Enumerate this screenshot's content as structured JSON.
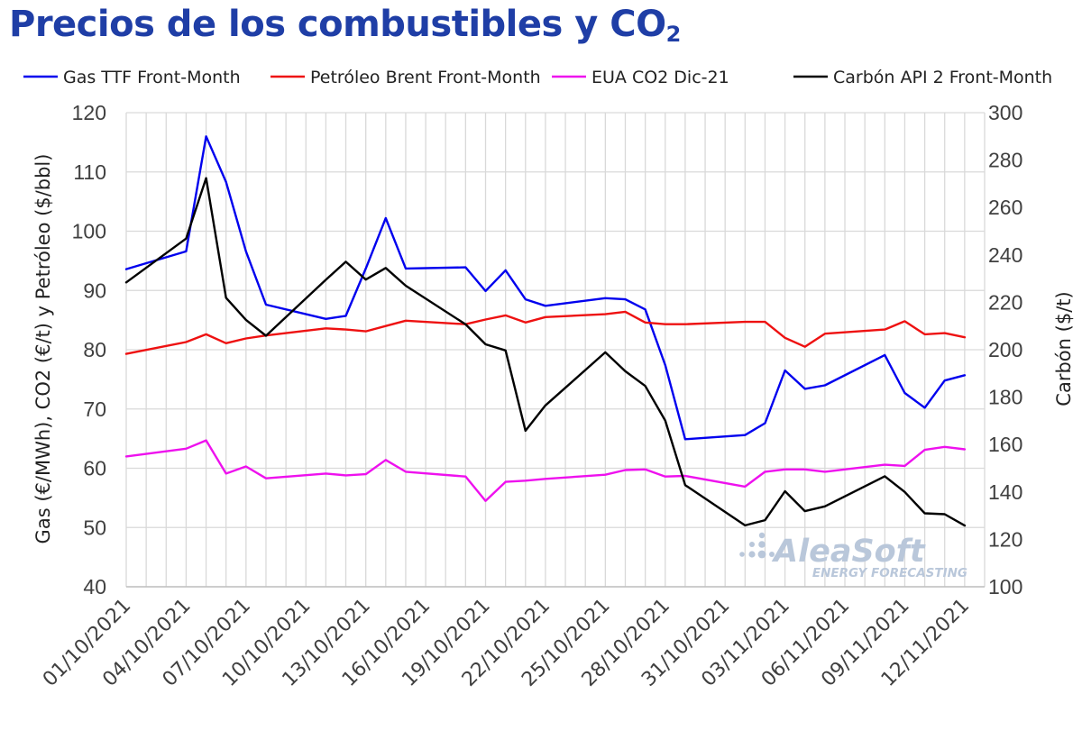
{
  "title_main": "Precios de los combustibles y CO",
  "title_sub": "2",
  "logo": {
    "name": "AleaSoft",
    "tagline": "ENERGY FORECASTING"
  },
  "chart_data": {
    "type": "line",
    "y_left_label": "Gas (€/MWh), CO2 (€/t)  y Petróleo ($/bbl)",
    "y_right_label": "Carbón ($/t)",
    "y_left_lim": [
      40,
      120
    ],
    "y_left_ticks": [
      "40",
      "50",
      "60",
      "70",
      "80",
      "90",
      "100",
      "110",
      "120"
    ],
    "y_right_lim": [
      100,
      300
    ],
    "y_right_ticks": [
      "100",
      "120",
      "140",
      "160",
      "180",
      "200",
      "220",
      "240",
      "260",
      "280",
      "300"
    ],
    "x_start": "2021-10-01",
    "x_end": "2021-11-13",
    "x_ticks": [
      "01/10/2021",
      "04/10/2021",
      "07/10/2021",
      "10/10/2021",
      "13/10/2021",
      "16/10/2021",
      "19/10/2021",
      "22/10/2021",
      "25/10/2021",
      "28/10/2021",
      "31/10/2021",
      "03/11/2021",
      "06/11/2021",
      "09/11/2021",
      "12/11/2021"
    ],
    "grid": true,
    "legend_position": "top",
    "series": [
      {
        "name": "Gas TTF Front-Month",
        "axis": "left",
        "color": "#0000ee",
        "points": [
          [
            "2021-10-01",
            93.6
          ],
          [
            "2021-10-04",
            96.6
          ],
          [
            "2021-10-05",
            116.0
          ],
          [
            "2021-10-06",
            108.3
          ],
          [
            "2021-10-07",
            96.6
          ],
          [
            "2021-10-08",
            87.6
          ],
          [
            "2021-10-11",
            85.2
          ],
          [
            "2021-10-12",
            85.7
          ],
          [
            "2021-10-13",
            93.7
          ],
          [
            "2021-10-14",
            102.2
          ],
          [
            "2021-10-15",
            93.7
          ],
          [
            "2021-10-18",
            93.9
          ],
          [
            "2021-10-19",
            89.9
          ],
          [
            "2021-10-20",
            93.4
          ],
          [
            "2021-10-21",
            88.5
          ],
          [
            "2021-10-22",
            87.4
          ],
          [
            "2021-10-25",
            88.7
          ],
          [
            "2021-10-26",
            88.5
          ],
          [
            "2021-10-27",
            86.8
          ],
          [
            "2021-10-28",
            77.4
          ],
          [
            "2021-10-29",
            64.9
          ],
          [
            "2021-11-01",
            65.6
          ],
          [
            "2021-11-02",
            67.6
          ],
          [
            "2021-11-03",
            76.5
          ],
          [
            "2021-11-04",
            73.4
          ],
          [
            "2021-11-05",
            74.0
          ],
          [
            "2021-11-08",
            79.1
          ],
          [
            "2021-11-09",
            72.7
          ],
          [
            "2021-11-10",
            70.2
          ],
          [
            "2021-11-11",
            74.8
          ],
          [
            "2021-11-12",
            75.7
          ]
        ]
      },
      {
        "name": "Petróleo Brent Front-Month",
        "axis": "left",
        "color": "#ee1111",
        "points": [
          [
            "2021-10-01",
            79.3
          ],
          [
            "2021-10-04",
            81.3
          ],
          [
            "2021-10-05",
            82.6
          ],
          [
            "2021-10-06",
            81.1
          ],
          [
            "2021-10-07",
            81.9
          ],
          [
            "2021-10-08",
            82.4
          ],
          [
            "2021-10-11",
            83.6
          ],
          [
            "2021-10-12",
            83.4
          ],
          [
            "2021-10-13",
            83.1
          ],
          [
            "2021-10-14",
            84.0
          ],
          [
            "2021-10-15",
            84.9
          ],
          [
            "2021-10-18",
            84.3
          ],
          [
            "2021-10-19",
            85.1
          ],
          [
            "2021-10-20",
            85.8
          ],
          [
            "2021-10-21",
            84.6
          ],
          [
            "2021-10-22",
            85.5
          ],
          [
            "2021-10-25",
            86.0
          ],
          [
            "2021-10-26",
            86.4
          ],
          [
            "2021-10-27",
            84.6
          ],
          [
            "2021-10-28",
            84.3
          ],
          [
            "2021-10-29",
            84.3
          ],
          [
            "2021-11-01",
            84.7
          ],
          [
            "2021-11-02",
            84.7
          ],
          [
            "2021-11-03",
            82.0
          ],
          [
            "2021-11-04",
            80.5
          ],
          [
            "2021-11-05",
            82.7
          ],
          [
            "2021-11-08",
            83.4
          ],
          [
            "2021-11-09",
            84.8
          ],
          [
            "2021-11-10",
            82.6
          ],
          [
            "2021-11-11",
            82.8
          ],
          [
            "2021-11-12",
            82.1
          ]
        ]
      },
      {
        "name": "EUA CO2 Dic-21",
        "axis": "left",
        "color": "#ee11ee",
        "points": [
          [
            "2021-10-01",
            62.0
          ],
          [
            "2021-10-04",
            63.3
          ],
          [
            "2021-10-05",
            64.7
          ],
          [
            "2021-10-06",
            59.1
          ],
          [
            "2021-10-07",
            60.3
          ],
          [
            "2021-10-08",
            58.3
          ],
          [
            "2021-10-11",
            59.1
          ],
          [
            "2021-10-12",
            58.8
          ],
          [
            "2021-10-13",
            59.0
          ],
          [
            "2021-10-14",
            61.4
          ],
          [
            "2021-10-15",
            59.4
          ],
          [
            "2021-10-18",
            58.6
          ],
          [
            "2021-10-19",
            54.5
          ],
          [
            "2021-10-20",
            57.7
          ],
          [
            "2021-10-21",
            57.9
          ],
          [
            "2021-10-22",
            58.2
          ],
          [
            "2021-10-25",
            58.9
          ],
          [
            "2021-10-26",
            59.7
          ],
          [
            "2021-10-27",
            59.8
          ],
          [
            "2021-10-28",
            58.6
          ],
          [
            "2021-10-29",
            58.7
          ],
          [
            "2021-11-01",
            56.9
          ],
          [
            "2021-11-02",
            59.4
          ],
          [
            "2021-11-03",
            59.8
          ],
          [
            "2021-11-04",
            59.8
          ],
          [
            "2021-11-05",
            59.4
          ],
          [
            "2021-11-08",
            60.6
          ],
          [
            "2021-11-09",
            60.4
          ],
          [
            "2021-11-10",
            63.1
          ],
          [
            "2021-11-11",
            63.6
          ],
          [
            "2021-11-12",
            63.2
          ]
        ]
      },
      {
        "name": "Carbón API 2 Front-Month",
        "axis": "right",
        "color": "#000000",
        "points": [
          [
            "2021-10-01",
            228.4
          ],
          [
            "2021-10-04",
            246.9
          ],
          [
            "2021-10-05",
            272.4
          ],
          [
            "2021-10-06",
            221.9
          ],
          [
            "2021-10-07",
            212.6
          ],
          [
            "2021-10-08",
            205.9
          ],
          [
            "2021-10-11",
            229.5
          ],
          [
            "2021-10-12",
            237.1
          ],
          [
            "2021-10-13",
            229.6
          ],
          [
            "2021-10-14",
            234.5
          ],
          [
            "2021-10-15",
            227.0
          ],
          [
            "2021-10-18",
            210.7
          ],
          [
            "2021-10-19",
            202.3
          ],
          [
            "2021-10-20",
            199.7
          ],
          [
            "2021-10-21",
            165.8
          ],
          [
            "2021-10-22",
            176.5
          ],
          [
            "2021-10-25",
            198.9
          ],
          [
            "2021-10-26",
            190.9
          ],
          [
            "2021-10-27",
            184.7
          ],
          [
            "2021-10-28",
            170.1
          ],
          [
            "2021-10-29",
            142.9
          ],
          [
            "2021-11-01",
            125.9
          ],
          [
            "2021-11-02",
            128.1
          ],
          [
            "2021-11-03",
            140.3
          ],
          [
            "2021-11-04",
            131.9
          ],
          [
            "2021-11-05",
            133.9
          ],
          [
            "2021-11-08",
            146.6
          ],
          [
            "2021-11-09",
            140.0
          ],
          [
            "2021-11-10",
            131.0
          ],
          [
            "2021-11-11",
            130.6
          ],
          [
            "2021-11-12",
            125.8
          ]
        ]
      }
    ]
  }
}
